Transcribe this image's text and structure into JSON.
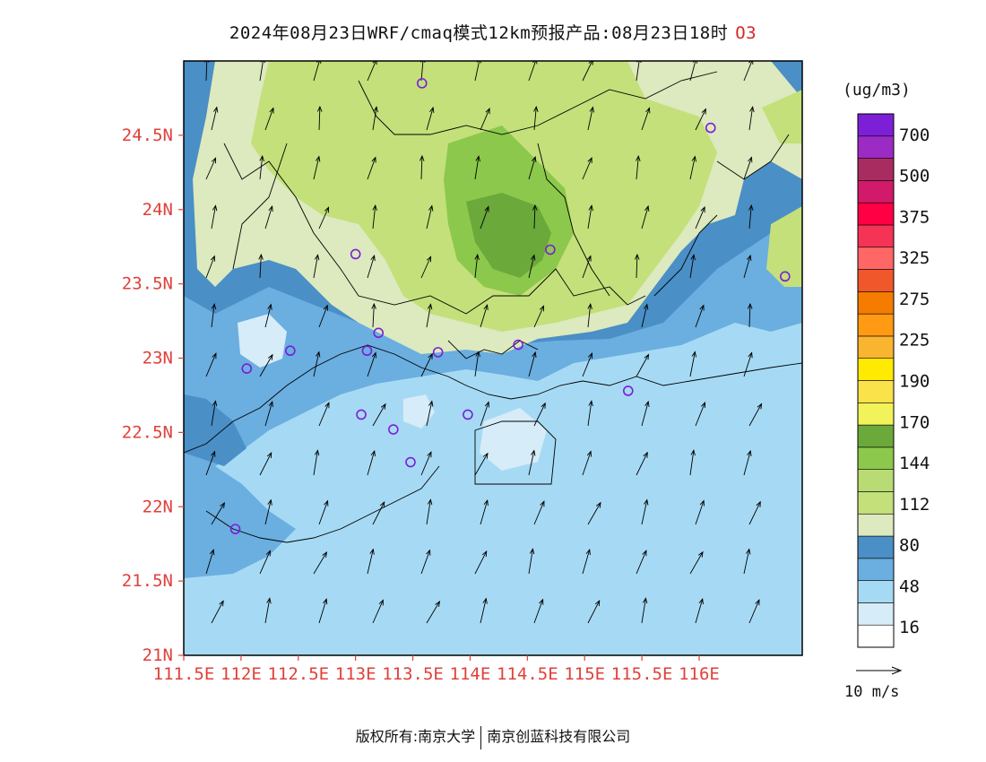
{
  "title": {
    "text": "2024年08月23日WRF/cmaq模式12km预报产品:08月23日18时",
    "species": "O3"
  },
  "colorbar": {
    "unit": "(ug/m3)",
    "colors": [
      "#ffffff",
      "#d6ecf8",
      "#a6daf4",
      "#6baee0",
      "#4a8fc6",
      "#dde9be",
      "#c3e07a",
      "#b8db74",
      "#8cc84c",
      "#6aa93a",
      "#f2f25a",
      "#f9e24a",
      "#ffea00",
      "#f9b430",
      "#ff9a12",
      "#f57c00",
      "#f0572a",
      "#ff6666",
      "#f53355",
      "#ff0044",
      "#d21a6a",
      "#a82c60",
      "#9b2bc4",
      "#7d1fd6"
    ],
    "labels": [
      {
        "level": 1,
        "text": "16"
      },
      {
        "level": 3,
        "text": "48"
      },
      {
        "level": 5,
        "text": "80"
      },
      {
        "level": 7,
        "text": "112"
      },
      {
        "level": 9,
        "text": "144"
      },
      {
        "level": 11,
        "text": "170"
      },
      {
        "level": 13,
        "text": "190"
      },
      {
        "level": 15,
        "text": "225"
      },
      {
        "level": 17,
        "text": "275"
      },
      {
        "level": 19,
        "text": "325"
      },
      {
        "level": 21,
        "text": "375"
      },
      {
        "level": 23,
        "text": "500"
      },
      {
        "level": 25,
        "text": "700"
      }
    ]
  },
  "map": {
    "lon_range": [
      111.5,
      116.9
    ],
    "lat_range": [
      21.0,
      25.0
    ],
    "x_ticks": [
      {
        "lon": 111.5,
        "label": "111.5E"
      },
      {
        "lon": 112.0,
        "label": "112E"
      },
      {
        "lon": 112.5,
        "label": "112.5E"
      },
      {
        "lon": 113.0,
        "label": "113E"
      },
      {
        "lon": 113.5,
        "label": "113.5E"
      },
      {
        "lon": 114.0,
        "label": "114E"
      },
      {
        "lon": 114.5,
        "label": "114.5E"
      },
      {
        "lon": 115.0,
        "label": "115E"
      },
      {
        "lon": 115.5,
        "label": "115.5E"
      },
      {
        "lon": 116.0,
        "label": "116E"
      }
    ],
    "y_ticks": [
      {
        "lat": 21.0,
        "label": "21N"
      },
      {
        "lat": 21.5,
        "label": "21.5N"
      },
      {
        "lat": 22.0,
        "label": "22N"
      },
      {
        "lat": 22.5,
        "label": "22.5N"
      },
      {
        "lat": 23.0,
        "label": "23N"
      },
      {
        "lat": 23.5,
        "label": "23.5N"
      },
      {
        "lat": 24.0,
        "label": "24N"
      },
      {
        "lat": 24.5,
        "label": "24.5N"
      }
    ],
    "tick_color": "#e0403a",
    "stations": [
      {
        "lon": 113.58,
        "lat": 24.85
      },
      {
        "lon": 116.1,
        "lat": 24.55
      },
      {
        "lon": 113.0,
        "lat": 23.7
      },
      {
        "lon": 114.7,
        "lat": 23.73
      },
      {
        "lon": 116.75,
        "lat": 23.55
      },
      {
        "lon": 112.43,
        "lat": 23.05
      },
      {
        "lon": 113.1,
        "lat": 23.05
      },
      {
        "lon": 113.2,
        "lat": 23.17
      },
      {
        "lon": 113.72,
        "lat": 23.04
      },
      {
        "lon": 114.42,
        "lat": 23.09
      },
      {
        "lon": 112.05,
        "lat": 22.93
      },
      {
        "lon": 115.38,
        "lat": 22.78
      },
      {
        "lon": 113.05,
        "lat": 22.62
      },
      {
        "lon": 113.33,
        "lat": 22.52
      },
      {
        "lon": 113.98,
        "lat": 22.62
      },
      {
        "lon": 113.48,
        "lat": 22.3
      },
      {
        "lon": 111.95,
        "lat": 21.85
      }
    ],
    "wind_reference": {
      "speed": 10,
      "label": "10  m/s"
    }
  },
  "footer": {
    "left": "版权所有:南京大学",
    "right": "南京创蓝科技有限公司"
  }
}
